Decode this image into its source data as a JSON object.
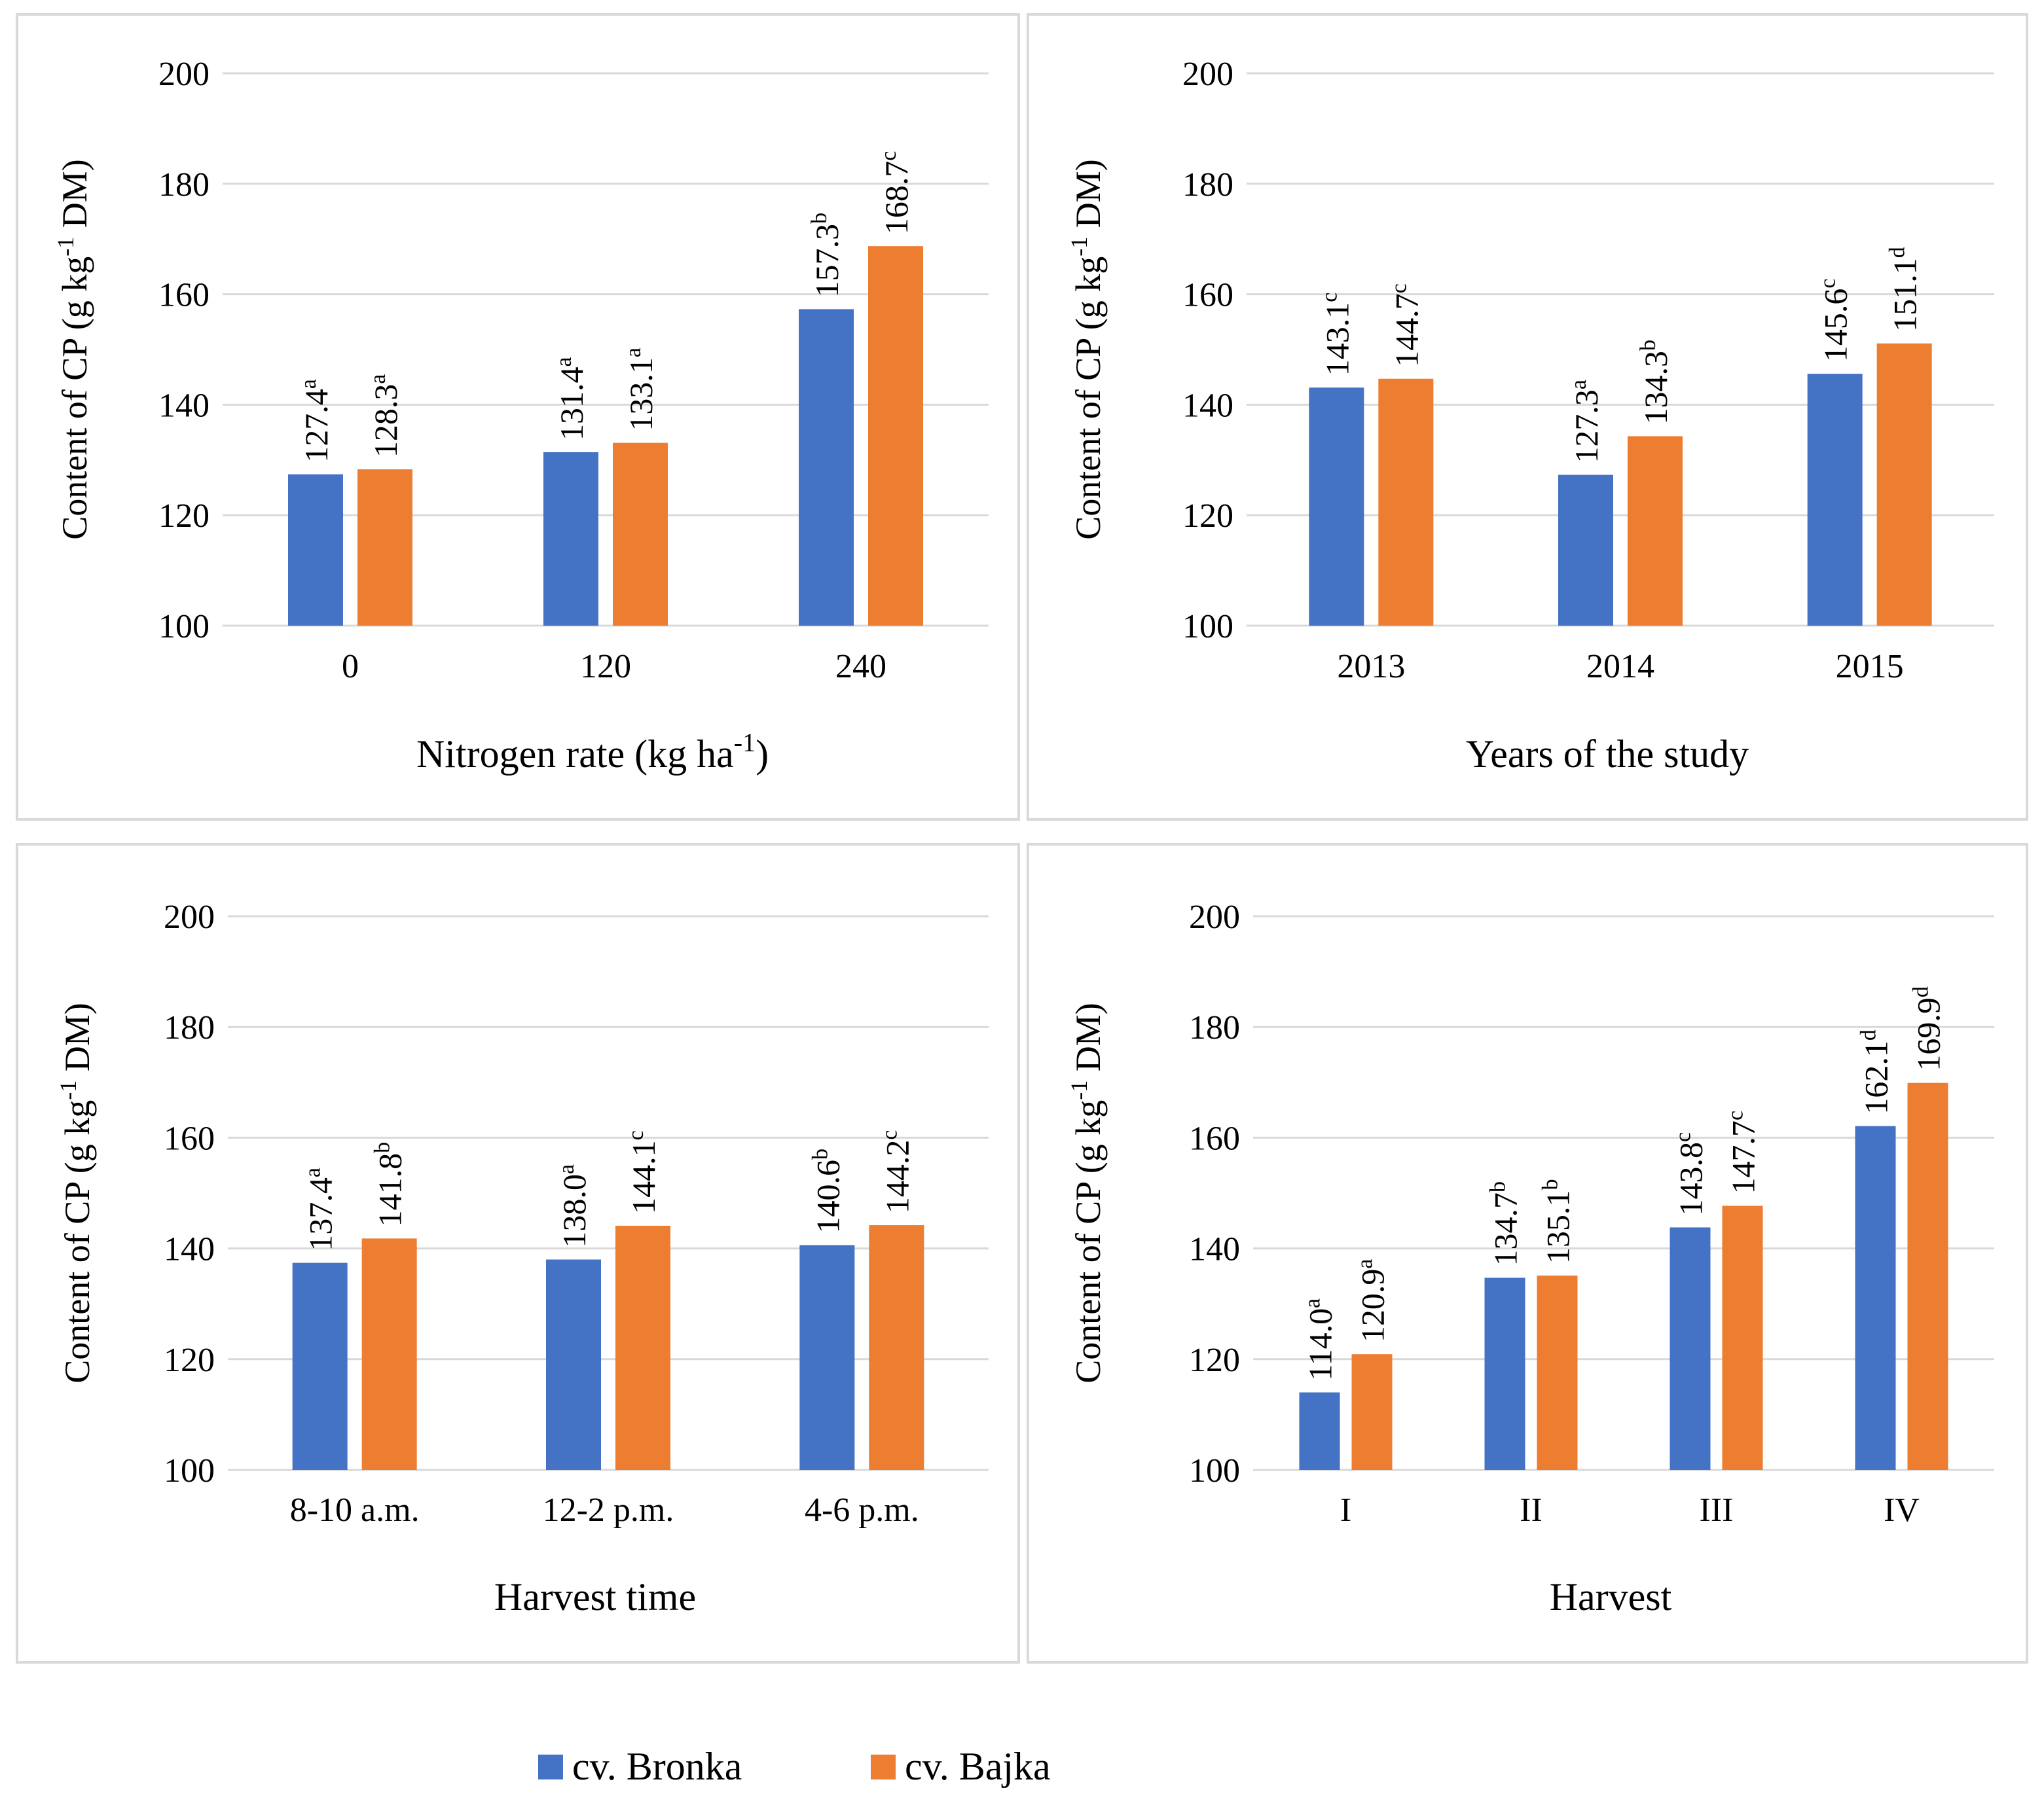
{
  "colors": {
    "bronka": "#4472c4",
    "bajka": "#ed7d31",
    "grid": "#d9d9d9",
    "border": "#d9d9d9"
  },
  "legend": {
    "series": [
      "cv. Bronka",
      "cv. Bajka"
    ]
  },
  "chart_data": [
    {
      "type": "bar",
      "xlabel": "Nitrogen rate (kg ha",
      "xlabel_sup": "-1",
      "xlabel_tail": ")",
      "ylabel": "Content of CP (g kg",
      "ylabel_sup": "-1",
      "ylabel_tail": " DM)",
      "ylim": [
        100,
        200
      ],
      "yticks": [
        "100",
        "120",
        "140",
        "160",
        "180",
        "200"
      ],
      "categories": [
        "0",
        "120",
        "240"
      ],
      "series": [
        {
          "name": "cv. Bronka",
          "values": [
            127.4,
            131.4,
            157.3
          ],
          "labels": [
            "127.4",
            "131.4",
            "157.3"
          ],
          "letters": [
            "a",
            "a",
            "b"
          ]
        },
        {
          "name": "cv. Bajka",
          "values": [
            128.3,
            133.1,
            168.7
          ],
          "labels": [
            "128.3",
            "133.1",
            "168.7"
          ],
          "letters": [
            "a",
            "a",
            "c"
          ]
        }
      ]
    },
    {
      "type": "bar",
      "xlabel": "Years of the study",
      "xlabel_sup": "",
      "xlabel_tail": "",
      "ylabel": "Content of CP (g kg",
      "ylabel_sup": "-1",
      "ylabel_tail": " DM)",
      "ylim": [
        100,
        200
      ],
      "yticks": [
        "100",
        "120",
        "140",
        "160",
        "180",
        "200"
      ],
      "categories": [
        "2013",
        "2014",
        "2015"
      ],
      "series": [
        {
          "name": "cv. Bronka",
          "values": [
            143.1,
            127.3,
            145.6
          ],
          "labels": [
            "143.1",
            "127.3",
            "145.6"
          ],
          "letters": [
            "c",
            "a",
            "c"
          ]
        },
        {
          "name": "cv. Bajka",
          "values": [
            144.7,
            134.3,
            151.1
          ],
          "labels": [
            "144.7",
            "134.3",
            "151.1"
          ],
          "letters": [
            "c",
            "b",
            "d"
          ]
        }
      ]
    },
    {
      "type": "bar",
      "xlabel": "Harvest time",
      "xlabel_sup": "",
      "xlabel_tail": "",
      "ylabel": "Content of CP (g kg",
      "ylabel_sup": "-1",
      "ylabel_tail": " DM)",
      "ylim": [
        100,
        200
      ],
      "yticks": [
        "100",
        "120",
        "140",
        "160",
        "180",
        "200"
      ],
      "categories": [
        "8-10 a.m.",
        "12-2 p.m.",
        "4-6 p.m."
      ],
      "series": [
        {
          "name": "cv. Bronka",
          "values": [
            137.4,
            138.0,
            140.6
          ],
          "labels": [
            "137.4",
            "138.0",
            "140.6"
          ],
          "letters": [
            "a",
            "a",
            "b"
          ]
        },
        {
          "name": "cv. Bajka",
          "values": [
            141.8,
            144.1,
            144.2
          ],
          "labels": [
            "141.8",
            "144.1",
            "144.2"
          ],
          "letters": [
            "b",
            "c",
            "c"
          ]
        }
      ]
    },
    {
      "type": "bar",
      "xlabel": "Harvest",
      "xlabel_sup": "",
      "xlabel_tail": "",
      "ylabel": "Content of CP (g kg",
      "ylabel_sup": "-1",
      "ylabel_tail": " DM)",
      "ylim": [
        100,
        200
      ],
      "yticks": [
        "100",
        "120",
        "140",
        "160",
        "180",
        "200"
      ],
      "categories": [
        "I",
        "II",
        "III",
        "IV"
      ],
      "series": [
        {
          "name": "cv. Bronka",
          "values": [
            114.0,
            134.7,
            143.8,
            162.1
          ],
          "labels": [
            "114.0",
            "134.7",
            "143.8",
            "162.1"
          ],
          "letters": [
            "a",
            "b",
            "c",
            "d"
          ]
        },
        {
          "name": "cv. Bajka",
          "values": [
            120.9,
            135.1,
            147.7,
            169.9
          ],
          "labels": [
            "120.9",
            "135.1",
            "147.7",
            "169.9"
          ],
          "letters": [
            "a",
            "b",
            "c",
            "d"
          ]
        }
      ]
    }
  ]
}
